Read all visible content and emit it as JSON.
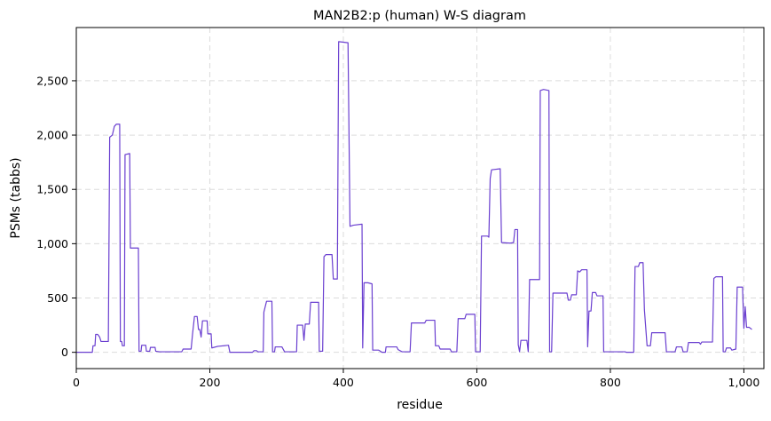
{
  "chart_data": {
    "type": "line",
    "title": "MAN2B2:p (human) W-S diagram",
    "xlabel": "residue",
    "ylabel": "PSMs (tabbs)",
    "xlim": [
      0,
      1030
    ],
    "ylim": [
      -150,
      2990
    ],
    "xticks": [
      0,
      200,
      400,
      600,
      800,
      1000
    ],
    "xtick_labels": [
      "0",
      "200",
      "400",
      "600",
      "800",
      "1,000"
    ],
    "yticks": [
      0,
      500,
      1000,
      1500,
      2000,
      2500
    ],
    "ytick_labels": [
      "0",
      "500",
      "1,000",
      "1,500",
      "2,000",
      "2,500"
    ],
    "grid": true,
    "line_color": "#6a3fd0",
    "series": [
      {
        "points": [
          [
            0,
            0
          ],
          [
            24,
            0
          ],
          [
            25,
            60
          ],
          [
            28,
            60
          ],
          [
            29,
            165
          ],
          [
            32,
            165
          ],
          [
            35,
            140
          ],
          [
            37,
            100
          ],
          [
            48,
            100
          ],
          [
            50,
            1980
          ],
          [
            54,
            2000
          ],
          [
            57,
            2080
          ],
          [
            60,
            2100
          ],
          [
            65,
            2100
          ],
          [
            66,
            100
          ],
          [
            68,
            100
          ],
          [
            69,
            60
          ],
          [
            72,
            60
          ],
          [
            73,
            1820
          ],
          [
            80,
            1830
          ],
          [
            81,
            960
          ],
          [
            93,
            960
          ],
          [
            94,
            10
          ],
          [
            97,
            10
          ],
          [
            98,
            65
          ],
          [
            104,
            65
          ],
          [
            105,
            10
          ],
          [
            110,
            10
          ],
          [
            111,
            45
          ],
          [
            118,
            45
          ],
          [
            119,
            10
          ],
          [
            125,
            5
          ],
          [
            158,
            5
          ],
          [
            160,
            30
          ],
          [
            172,
            30
          ],
          [
            174,
            160
          ],
          [
            177,
            330
          ],
          [
            181,
            330
          ],
          [
            183,
            210
          ],
          [
            185,
            210
          ],
          [
            187,
            140
          ],
          [
            189,
            290
          ],
          [
            196,
            290
          ],
          [
            197,
            170
          ],
          [
            202,
            170
          ],
          [
            203,
            40
          ],
          [
            212,
            55
          ],
          [
            228,
            65
          ],
          [
            230,
            0
          ],
          [
            264,
            0
          ],
          [
            266,
            15
          ],
          [
            270,
            15
          ],
          [
            272,
            5
          ],
          [
            280,
            5
          ],
          [
            281,
            370
          ],
          [
            285,
            470
          ],
          [
            293,
            470
          ],
          [
            294,
            5
          ],
          [
            297,
            5
          ],
          [
            298,
            50
          ],
          [
            308,
            50
          ],
          [
            312,
            5
          ],
          [
            330,
            5
          ],
          [
            331,
            250
          ],
          [
            339,
            250
          ],
          [
            341,
            110
          ],
          [
            343,
            260
          ],
          [
            349,
            260
          ],
          [
            351,
            460
          ],
          [
            363,
            460
          ],
          [
            364,
            10
          ],
          [
            369,
            10
          ],
          [
            371,
            880
          ],
          [
            374,
            900
          ],
          [
            383,
            900
          ],
          [
            385,
            675
          ],
          [
            391,
            675
          ],
          [
            393,
            2860
          ],
          [
            407,
            2850
          ],
          [
            410,
            1160
          ],
          [
            415,
            1170
          ],
          [
            428,
            1180
          ],
          [
            429,
            40
          ],
          [
            431,
            640
          ],
          [
            437,
            640
          ],
          [
            443,
            630
          ],
          [
            444,
            20
          ],
          [
            453,
            20
          ],
          [
            458,
            0
          ],
          [
            463,
            0
          ],
          [
            464,
            50
          ],
          [
            480,
            50
          ],
          [
            482,
            25
          ],
          [
            488,
            5
          ],
          [
            500,
            5
          ],
          [
            502,
            270
          ],
          [
            522,
            270
          ],
          [
            524,
            295
          ],
          [
            537,
            295
          ],
          [
            538,
            60
          ],
          [
            543,
            60
          ],
          [
            545,
            30
          ],
          [
            560,
            30
          ],
          [
            562,
            5
          ],
          [
            570,
            5
          ],
          [
            572,
            310
          ],
          [
            582,
            310
          ],
          [
            584,
            350
          ],
          [
            597,
            350
          ],
          [
            598,
            5
          ],
          [
            605,
            5
          ],
          [
            607,
            1070
          ],
          [
            616,
            1070
          ],
          [
            618,
            1060
          ],
          [
            620,
            1600
          ],
          [
            622,
            1680
          ],
          [
            635,
            1690
          ],
          [
            637,
            1010
          ],
          [
            650,
            1005
          ],
          [
            655,
            1010
          ],
          [
            657,
            1130
          ],
          [
            661,
            1130
          ],
          [
            662,
            70
          ],
          [
            664,
            5
          ],
          [
            666,
            110
          ],
          [
            675,
            110
          ],
          [
            677,
            5
          ],
          [
            679,
            670
          ],
          [
            694,
            670
          ],
          [
            695,
            2410
          ],
          [
            700,
            2420
          ],
          [
            708,
            2410
          ],
          [
            709,
            5
          ],
          [
            712,
            5
          ],
          [
            714,
            545
          ],
          [
            735,
            545
          ],
          [
            737,
            480
          ],
          [
            740,
            480
          ],
          [
            742,
            530
          ],
          [
            749,
            530
          ],
          [
            751,
            750
          ],
          [
            754,
            740
          ],
          [
            757,
            760
          ],
          [
            765,
            760
          ],
          [
            766,
            50
          ],
          [
            768,
            380
          ],
          [
            771,
            380
          ],
          [
            773,
            550
          ],
          [
            778,
            550
          ],
          [
            780,
            520
          ],
          [
            789,
            520
          ],
          [
            790,
            5
          ],
          [
            822,
            5
          ],
          [
            824,
            0
          ],
          [
            835,
            0
          ],
          [
            837,
            790
          ],
          [
            842,
            790
          ],
          [
            844,
            825
          ],
          [
            849,
            825
          ],
          [
            851,
            390
          ],
          [
            855,
            60
          ],
          [
            860,
            60
          ],
          [
            862,
            180
          ],
          [
            882,
            180
          ],
          [
            884,
            5
          ],
          [
            897,
            5
          ],
          [
            899,
            50
          ],
          [
            907,
            50
          ],
          [
            909,
            5
          ],
          [
            915,
            5
          ],
          [
            917,
            90
          ],
          [
            933,
            90
          ],
          [
            935,
            75
          ],
          [
            937,
            95
          ],
          [
            953,
            95
          ],
          [
            955,
            680
          ],
          [
            958,
            695
          ],
          [
            968,
            695
          ],
          [
            969,
            5
          ],
          [
            972,
            5
          ],
          [
            974,
            40
          ],
          [
            980,
            40
          ],
          [
            982,
            20
          ],
          [
            988,
            30
          ],
          [
            990,
            600
          ],
          [
            998,
            600
          ],
          [
            1000,
            220
          ],
          [
            1002,
            420
          ],
          [
            1004,
            230
          ],
          [
            1008,
            230
          ],
          [
            1012,
            210
          ]
        ]
      }
    ]
  }
}
